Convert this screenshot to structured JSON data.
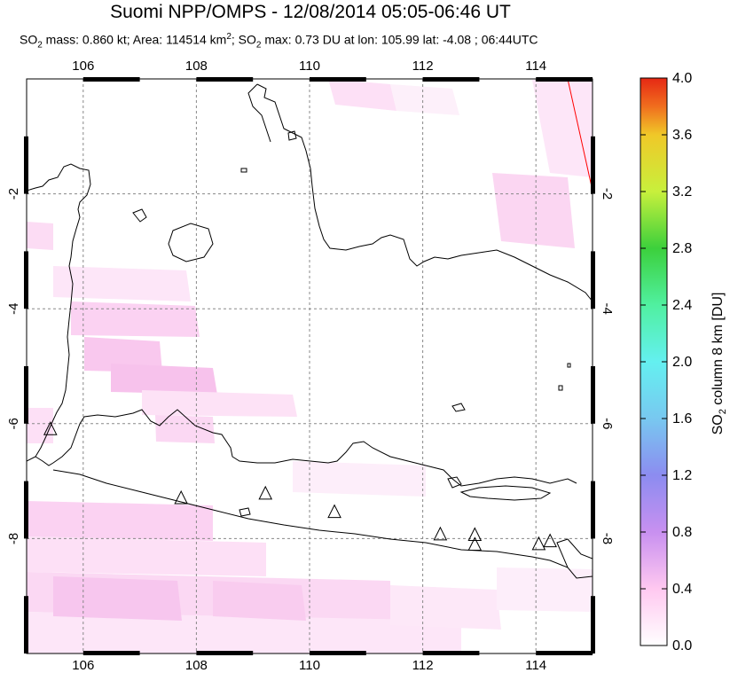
{
  "title": "Suomi NPP/OMPS - 12/08/2014 05:05-06:46 UT",
  "subtitle": {
    "p1": "SO",
    "s1": "2",
    "p2": " mass: 0.860 kt; Area: 114514 km",
    "s2": "2",
    "p3": "; SO",
    "s3": "2",
    "p4": " max: 0.73 DU at lon: 105.99 lat: -4.08 ; 06:44UTC"
  },
  "map": {
    "lon_range": [
      105,
      115
    ],
    "lat_range": [
      -10,
      0
    ],
    "lon_ticks": [
      "106",
      "108",
      "110",
      "112",
      "114"
    ],
    "lat_ticks": [
      "-2",
      "-4",
      "-6",
      "-8"
    ],
    "volcano_markers": [
      {
        "lon": 105.42,
        "lat": -6.1
      },
      {
        "lon": 107.73,
        "lat": -7.3
      },
      {
        "lon": 109.22,
        "lat": -7.22
      },
      {
        "lon": 110.44,
        "lat": -7.54
      },
      {
        "lon": 112.31,
        "lat": -7.93
      },
      {
        "lon": 112.92,
        "lat": -7.94
      },
      {
        "lon": 112.92,
        "lat": -8.11
      },
      {
        "lon": 114.05,
        "lat": -8.1
      },
      {
        "lon": 114.25,
        "lat": -8.05
      }
    ]
  },
  "colorbar": {
    "label_pre": "SO",
    "label_sub": "2",
    "label_post": " column 8 km [DU]",
    "range": [
      0.0,
      4.0
    ],
    "ticks": [
      "0.0",
      "0.4",
      "0.8",
      "1.2",
      "1.6",
      "2.0",
      "2.4",
      "2.8",
      "3.2",
      "3.6",
      "4.0"
    ],
    "colors": [
      "#ffffff",
      "#ffc8f0",
      "#c890f0",
      "#8c8cf0",
      "#78c8f0",
      "#64f0f0",
      "#50f0a0",
      "#3cd03c",
      "#c8f03c",
      "#f0c828",
      "#f06e1e",
      "#e62814"
    ]
  }
}
